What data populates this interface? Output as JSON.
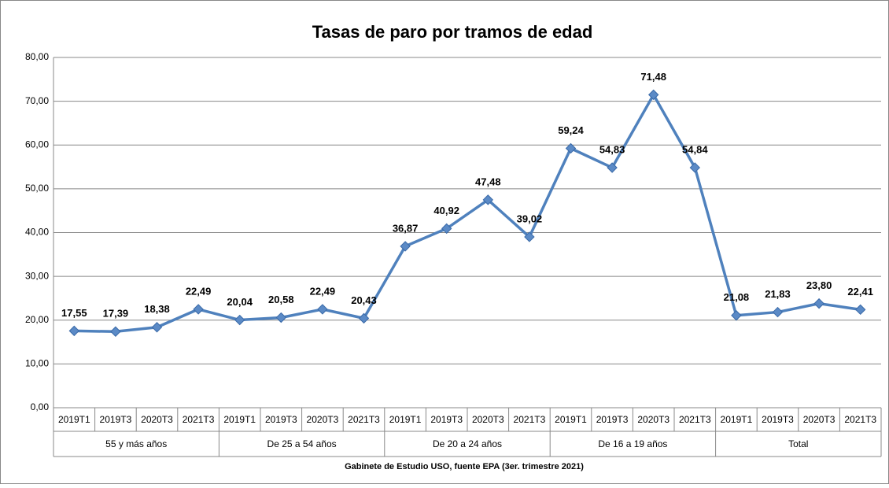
{
  "chart_data": {
    "type": "line",
    "title": "Tasas de paro por tramos de edad",
    "x_label": "Gabinete de Estudio USO, fuente EPA (3er. trimestre 2021)",
    "groups": [
      "55 y más años",
      "De 25 a 54 años",
      "De 20 a 24 años",
      "De 16 a 19 años",
      "Total"
    ],
    "categories": [
      "2019T1",
      "2019T3",
      "2020T3",
      "2021T3",
      "2019T1",
      "2019T3",
      "2020T3",
      "2021T3",
      "2019T1",
      "2019T3",
      "2020T3",
      "2021T3",
      "2019T1",
      "2019T3",
      "2020T3",
      "2021T3",
      "2019T1",
      "2019T3",
      "2020T3",
      "2021T3"
    ],
    "values": [
      17.55,
      17.39,
      18.38,
      22.49,
      20.04,
      20.58,
      22.49,
      20.43,
      36.87,
      40.92,
      47.48,
      39.02,
      59.24,
      54.83,
      71.48,
      54.84,
      21.08,
      21.83,
      23.8,
      22.41
    ],
    "value_labels": [
      "17,55",
      "17,39",
      "18,38",
      "22,49",
      "20,04",
      "20,58",
      "22,49",
      "20,43",
      "36,87",
      "40,92",
      "47,48",
      "39,02",
      "59,24",
      "54,83",
      "71,48",
      "54,84",
      "21,08",
      "21,83",
      "23,80",
      "22,41"
    ],
    "color": "#4f81bd",
    "ylim": [
      0,
      80
    ],
    "yticks": [
      {
        "value": 0,
        "label": "0,00"
      },
      {
        "value": 10,
        "label": "10,00"
      },
      {
        "value": 20,
        "label": "20,00"
      },
      {
        "value": 30,
        "label": "30,00"
      },
      {
        "value": 40,
        "label": "40,00"
      },
      {
        "value": 50,
        "label": "50,00"
      },
      {
        "value": 60,
        "label": "60,00"
      },
      {
        "value": 70,
        "label": "70,00"
      },
      {
        "value": 80,
        "label": "80,00"
      }
    ],
    "grid": true
  }
}
